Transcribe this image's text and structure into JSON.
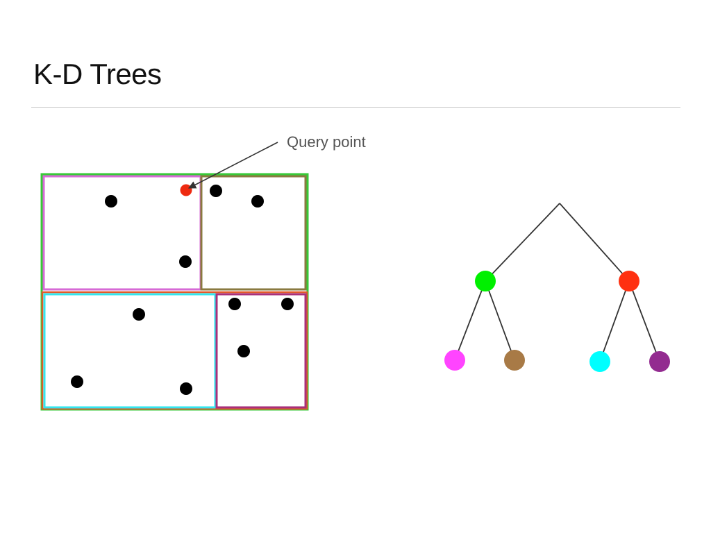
{
  "slide": {
    "title": "K-D Trees"
  },
  "annotation": {
    "label": "Query point"
  },
  "colors": {
    "root_region": "#38c838",
    "left_child": "#00f000",
    "right_child": "#ff3010",
    "top_left_leaf": "#ff44ff",
    "top_right_leaf": "#a87a46",
    "bottom_left_leaf": "#00ffff",
    "bottom_right_leaf": "#932b90",
    "point": "#000000",
    "query_point": "#ee2a10",
    "edge": "#333333"
  },
  "kd_regions": [
    {
      "name": "root-region",
      "color": "#38c838"
    },
    {
      "name": "bottom-half-region",
      "color": "#e25a2a"
    },
    {
      "name": "top-left-leaf-region",
      "color": "#d66ad6"
    },
    {
      "name": "top-right-leaf-region",
      "color": "#8a7a40"
    },
    {
      "name": "bottom-left-leaf-region",
      "color": "#33e6ee"
    },
    {
      "name": "bottom-right-leaf-region",
      "color": "#a8307a"
    }
  ],
  "tree_nodes": [
    {
      "name": "tree-node-left-child",
      "color": "#00f000"
    },
    {
      "name": "tree-node-right-child",
      "color": "#ff3010"
    },
    {
      "name": "tree-leaf-top-left",
      "color": "#ff44ff"
    },
    {
      "name": "tree-leaf-top-right",
      "color": "#a87a46"
    },
    {
      "name": "tree-leaf-bottom-left",
      "color": "#00ffff"
    },
    {
      "name": "tree-leaf-bottom-right",
      "color": "#932b90"
    }
  ]
}
